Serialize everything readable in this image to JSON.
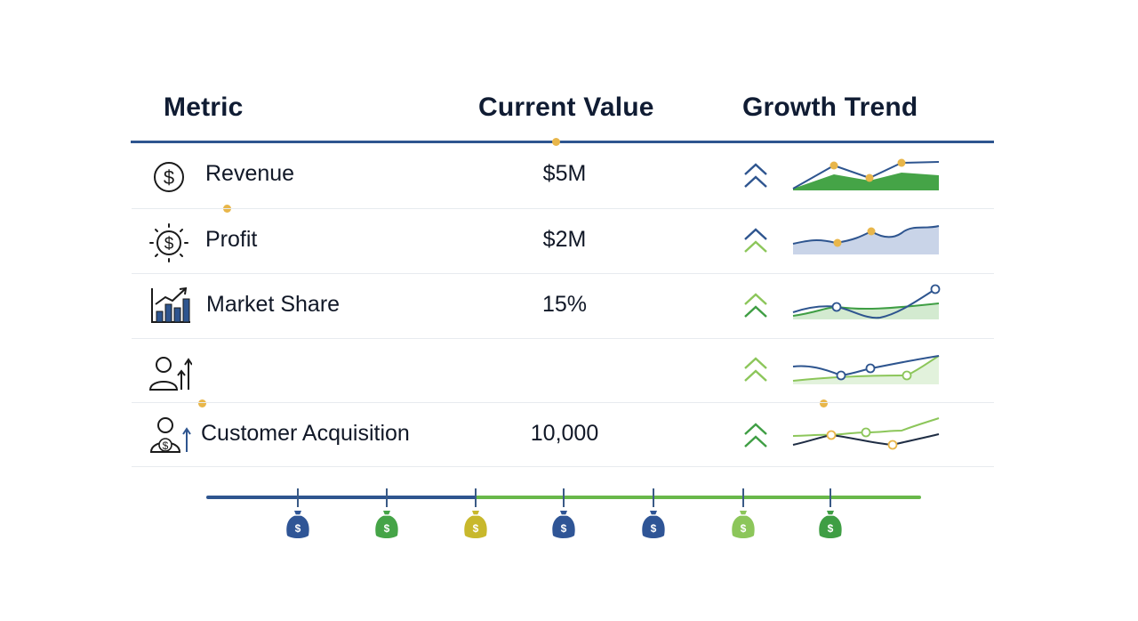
{
  "table": {
    "headers": {
      "metric": "Metric",
      "current_value": "Current Value",
      "growth_trend": "Growth Trend"
    },
    "rows": [
      {
        "metric": "Revenue",
        "value": "$5M",
        "icon": "dollar-circle-icon",
        "trend": "up"
      },
      {
        "metric": "Profit",
        "value": "$2M",
        "icon": "dollar-burst-icon",
        "trend": "up"
      },
      {
        "metric": "Market Share",
        "value": "15%",
        "icon": "bar-chart-growth-icon",
        "trend": "up"
      },
      {
        "metric": "",
        "value": "",
        "icon": "user-growth-icon",
        "trend": "up"
      },
      {
        "metric": "Customer Acquisition",
        "value": "10,000",
        "icon": "user-dollar-icon",
        "trend": "up"
      }
    ]
  },
  "timeline": {
    "markers": [
      {
        "icon": "money-bag-icon",
        "color": "#2f5596"
      },
      {
        "icon": "money-bag-icon",
        "color": "#45a447"
      },
      {
        "icon": "money-bag-icon",
        "color": "#c8b82c"
      },
      {
        "icon": "money-bag-icon",
        "color": "#2f5596"
      },
      {
        "icon": "money-bag-icon",
        "color": "#2f5596"
      },
      {
        "icon": "money-bag-icon",
        "color": "#8cc65a"
      },
      {
        "icon": "money-bag-icon",
        "color": "#3f9e44"
      }
    ]
  },
  "colors": {
    "navy": "#2e558f",
    "green": "#45a447",
    "light_green": "#8cc65a",
    "accent_dot": "#e8b64a",
    "divider": "#e7ebef"
  }
}
